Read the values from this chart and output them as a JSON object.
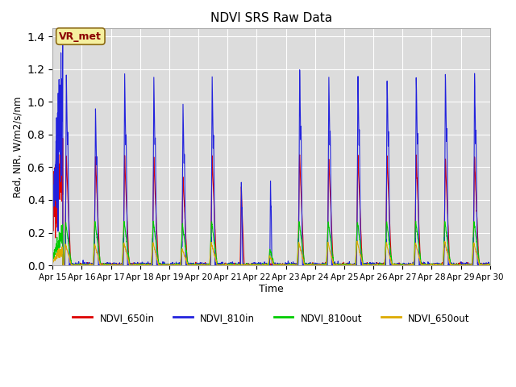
{
  "title": "NDVI SRS Raw Data",
  "xlabel": "Time",
  "ylabel": "Red, NIR, W/m2/s/nm",
  "ylim": [
    0,
    1.45
  ],
  "xlim": [
    0,
    15
  ],
  "annotation": "VR_met",
  "background_color": "#dcdcdc",
  "legend": [
    {
      "label": "NDVI_650in",
      "color": "#dd0000"
    },
    {
      "label": "NDVI_810in",
      "color": "#2222dd"
    },
    {
      "label": "NDVI_810out",
      "color": "#00cc00"
    },
    {
      "label": "NDVI_650out",
      "color": "#ddaa00"
    }
  ],
  "xtick_labels": [
    "Apr 15",
    "Apr 16",
    "Apr 17",
    "Apr 18",
    "Apr 19",
    "Apr 20",
    "Apr 21",
    "Apr 22",
    "Apr 23",
    "Apr 24",
    "Apr 25",
    "Apr 26",
    "Apr 27",
    "Apr 28",
    "Apr 29",
    "Apr 30"
  ],
  "xtick_positions": [
    0,
    1,
    2,
    3,
    4,
    5,
    6,
    7,
    8,
    9,
    10,
    11,
    12,
    13,
    14,
    15
  ],
  "ytick_labels": [
    "0.0",
    "0.2",
    "0.4",
    "0.6",
    "0.8",
    "1.0",
    "1.2",
    "1.4"
  ],
  "ytick_positions": [
    0.0,
    0.2,
    0.4,
    0.6,
    0.8,
    1.0,
    1.2,
    1.4
  ]
}
